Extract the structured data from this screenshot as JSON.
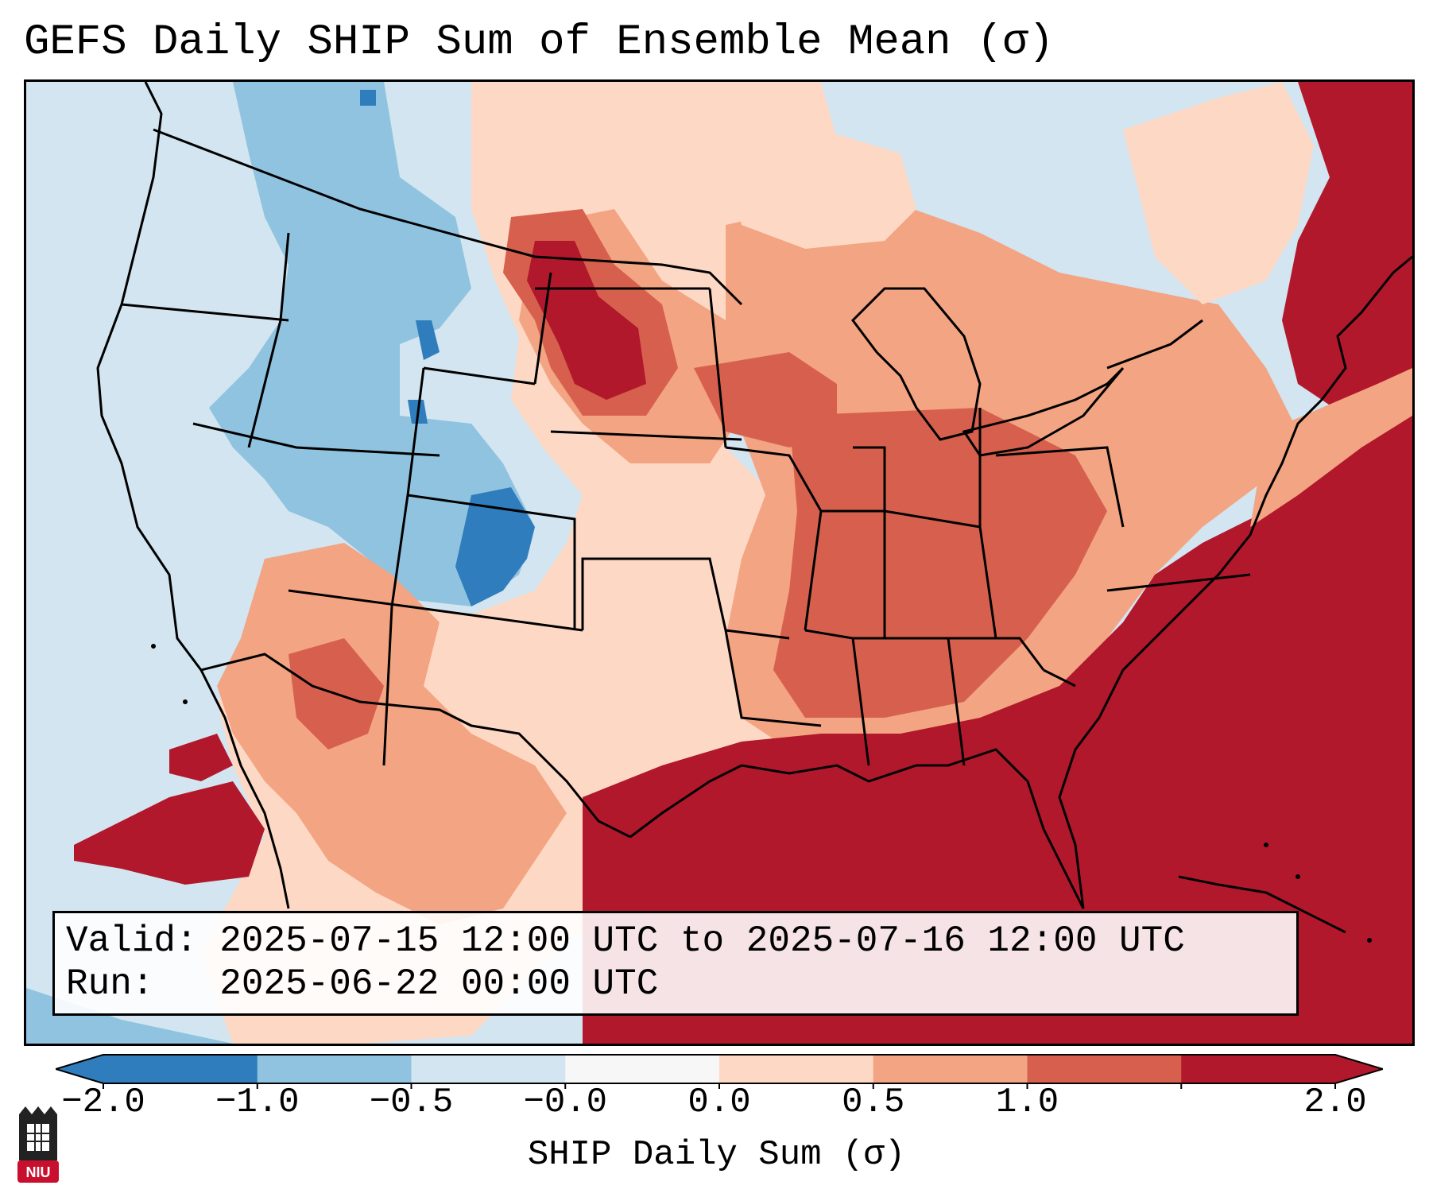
{
  "title": "GEFS Daily SHIP Sum of Ensemble Mean (σ)",
  "info": {
    "valid_label": "Valid:",
    "valid_value": "2025-07-15 12:00 UTC to 2025-07-16 12:00 UTC",
    "run_label": "Run:",
    "run_value": "2025-06-22 00:00 UTC"
  },
  "colorbar": {
    "label": "SHIP Daily Sum (σ)",
    "ticks": [
      "−2.0",
      "−1.0",
      "−0.5",
      "−0.0",
      "0.0",
      "0.5",
      "1.0",
      "2.0"
    ],
    "bins": [
      "#2f7dbc",
      "#90c3df",
      "#d2e5f0",
      "#f7f7f7",
      "#fdd9c5",
      "#f3a482",
      "#d6604d",
      "#b2182b"
    ],
    "extend_low_color": "#2f7dbc",
    "extend_high_color": "#b2182b"
  },
  "map": {
    "background": "#d2e5f0",
    "region": "Continental United States",
    "projection": "Lambert Conformal"
  },
  "logo": {
    "text": "NIU",
    "name": "niu-logo"
  }
}
